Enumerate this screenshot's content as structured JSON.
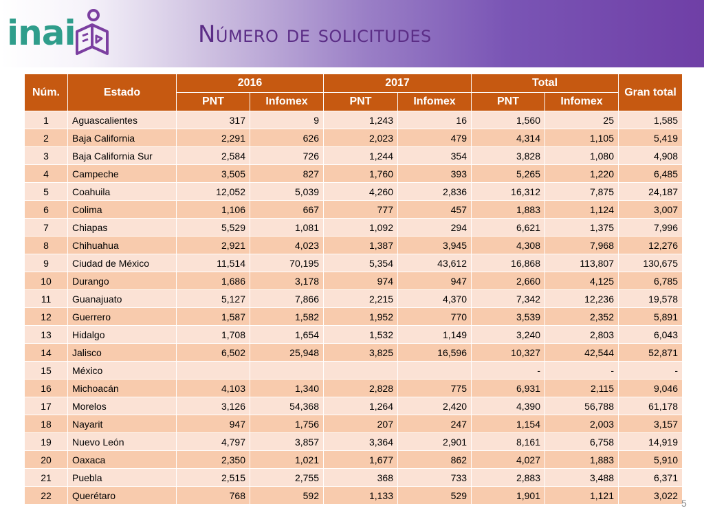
{
  "header": {
    "logo_text": "inai",
    "title": "Número de solicitudes"
  },
  "colors": {
    "header_fill": "#c65911",
    "row_light": "#fbe2d5",
    "row_dark": "#f8cbad",
    "logo_green": "#2f9d8b",
    "logo_purple": "#7b3fa0",
    "title_color": "#5b2d86"
  },
  "icons": {
    "logo": "inai-book-person-icon"
  },
  "table": {
    "headers": {
      "num": "Núm.",
      "estado": "Estado",
      "y2016": "2016",
      "y2017": "2017",
      "total": "Total",
      "gran_total": "Gran total",
      "pnt": "PNT",
      "infomex": "Infomex"
    },
    "rows": [
      {
        "num": "1",
        "estado": "Aguascalientes",
        "pnt2016": "317",
        "inf2016": "9",
        "pnt2017": "1,243",
        "inf2017": "16",
        "pntTotal": "1,560",
        "infTotal": "25",
        "gran": "1,585"
      },
      {
        "num": "2",
        "estado": "Baja California",
        "pnt2016": "2,291",
        "inf2016": "626",
        "pnt2017": "2,023",
        "inf2017": "479",
        "pntTotal": "4,314",
        "infTotal": "1,105",
        "gran": "5,419"
      },
      {
        "num": "3",
        "estado": "Baja California Sur",
        "pnt2016": "2,584",
        "inf2016": "726",
        "pnt2017": "1,244",
        "inf2017": "354",
        "pntTotal": "3,828",
        "infTotal": "1,080",
        "gran": "4,908"
      },
      {
        "num": "4",
        "estado": "Campeche",
        "pnt2016": "3,505",
        "inf2016": "827",
        "pnt2017": "1,760",
        "inf2017": "393",
        "pntTotal": "5,265",
        "infTotal": "1,220",
        "gran": "6,485"
      },
      {
        "num": "5",
        "estado": "Coahuila",
        "pnt2016": "12,052",
        "inf2016": "5,039",
        "pnt2017": "4,260",
        "inf2017": "2,836",
        "pntTotal": "16,312",
        "infTotal": "7,875",
        "gran": "24,187"
      },
      {
        "num": "6",
        "estado": "Colima",
        "pnt2016": "1,106",
        "inf2016": "667",
        "pnt2017": "777",
        "inf2017": "457",
        "pntTotal": "1,883",
        "infTotal": "1,124",
        "gran": "3,007"
      },
      {
        "num": "7",
        "estado": "Chiapas",
        "pnt2016": "5,529",
        "inf2016": "1,081",
        "pnt2017": "1,092",
        "inf2017": "294",
        "pntTotal": "6,621",
        "infTotal": "1,375",
        "gran": "7,996"
      },
      {
        "num": "8",
        "estado": "Chihuahua",
        "pnt2016": "2,921",
        "inf2016": "4,023",
        "pnt2017": "1,387",
        "inf2017": "3,945",
        "pntTotal": "4,308",
        "infTotal": "7,968",
        "gran": "12,276"
      },
      {
        "num": "9",
        "estado": "Ciudad de México",
        "pnt2016": "11,514",
        "inf2016": "70,195",
        "pnt2017": "5,354",
        "inf2017": "43,612",
        "pntTotal": "16,868",
        "infTotal": "113,807",
        "gran": "130,675"
      },
      {
        "num": "10",
        "estado": "Durango",
        "pnt2016": "1,686",
        "inf2016": "3,178",
        "pnt2017": "974",
        "inf2017": "947",
        "pntTotal": "2,660",
        "infTotal": "4,125",
        "gran": "6,785"
      },
      {
        "num": "11",
        "estado": "Guanajuato",
        "pnt2016": "5,127",
        "inf2016": "7,866",
        "pnt2017": "2,215",
        "inf2017": "4,370",
        "pntTotal": "7,342",
        "infTotal": "12,236",
        "gran": "19,578"
      },
      {
        "num": "12",
        "estado": "Guerrero",
        "pnt2016": "1,587",
        "inf2016": "1,582",
        "pnt2017": "1,952",
        "inf2017": "770",
        "pntTotal": "3,539",
        "infTotal": "2,352",
        "gran": "5,891"
      },
      {
        "num": "13",
        "estado": "Hidalgo",
        "pnt2016": "1,708",
        "inf2016": "1,654",
        "pnt2017": "1,532",
        "inf2017": "1,149",
        "pntTotal": "3,240",
        "infTotal": "2,803",
        "gran": "6,043"
      },
      {
        "num": "14",
        "estado": "Jalisco",
        "pnt2016": "6,502",
        "inf2016": "25,948",
        "pnt2017": "3,825",
        "inf2017": "16,596",
        "pntTotal": "10,327",
        "infTotal": "42,544",
        "gran": "52,871"
      },
      {
        "num": "15",
        "estado": "México",
        "pnt2016": "",
        "inf2016": "",
        "pnt2017": "",
        "inf2017": "",
        "pntTotal": "-",
        "infTotal": "-",
        "gran": "-"
      },
      {
        "num": "16",
        "estado": "Michoacán",
        "pnt2016": "4,103",
        "inf2016": "1,340",
        "pnt2017": "2,828",
        "inf2017": "775",
        "pntTotal": "6,931",
        "infTotal": "2,115",
        "gran": "9,046"
      },
      {
        "num": "17",
        "estado": "Morelos",
        "pnt2016": "3,126",
        "inf2016": "54,368",
        "pnt2017": "1,264",
        "inf2017": "2,420",
        "pntTotal": "4,390",
        "infTotal": "56,788",
        "gran": "61,178"
      },
      {
        "num": "18",
        "estado": "Nayarit",
        "pnt2016": "947",
        "inf2016": "1,756",
        "pnt2017": "207",
        "inf2017": "247",
        "pntTotal": "1,154",
        "infTotal": "2,003",
        "gran": "3,157"
      },
      {
        "num": "19",
        "estado": "Nuevo León",
        "pnt2016": "4,797",
        "inf2016": "3,857",
        "pnt2017": "3,364",
        "inf2017": "2,901",
        "pntTotal": "8,161",
        "infTotal": "6,758",
        "gran": "14,919"
      },
      {
        "num": "20",
        "estado": "Oaxaca",
        "pnt2016": "2,350",
        "inf2016": "1,021",
        "pnt2017": "1,677",
        "inf2017": "862",
        "pntTotal": "4,027",
        "infTotal": "1,883",
        "gran": "5,910"
      },
      {
        "num": "21",
        "estado": "Puebla",
        "pnt2016": "2,515",
        "inf2016": "2,755",
        "pnt2017": "368",
        "inf2017": "733",
        "pntTotal": "2,883",
        "infTotal": "3,488",
        "gran": "6,371"
      },
      {
        "num": "22",
        "estado": "Querétaro",
        "pnt2016": "768",
        "inf2016": "592",
        "pnt2017": "1,133",
        "inf2017": "529",
        "pntTotal": "1,901",
        "infTotal": "1,121",
        "gran": "3,022"
      }
    ]
  },
  "footer": {
    "page_number": "5"
  }
}
